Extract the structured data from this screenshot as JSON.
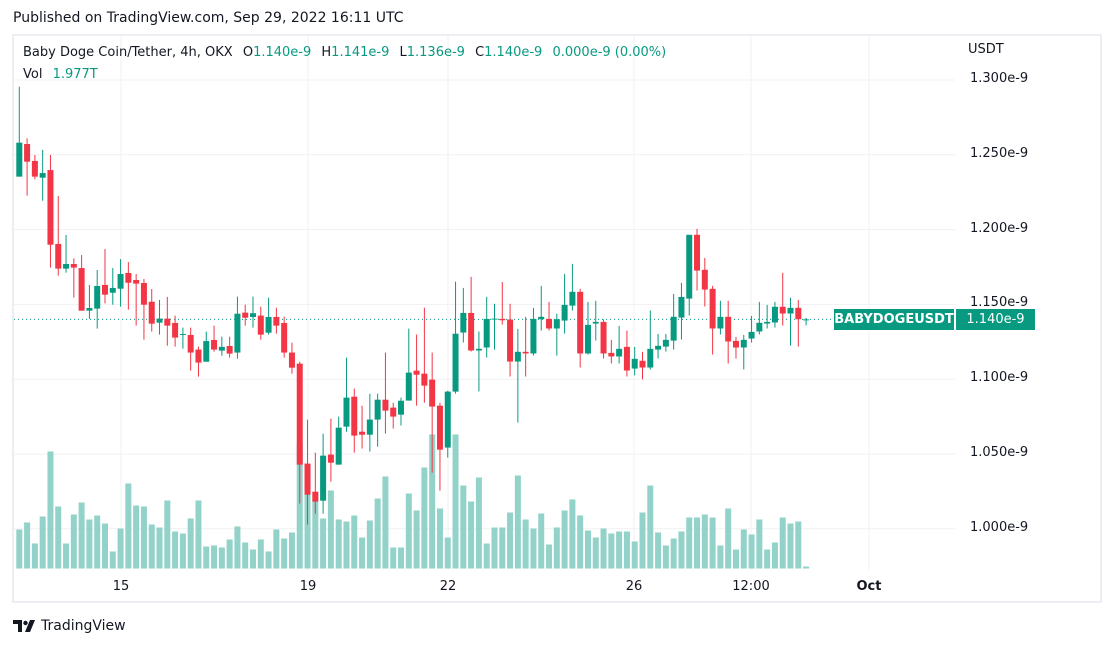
{
  "header": {
    "published": "Published on TradingView.com, Sep 29, 2022 16:11 UTC"
  },
  "legend": {
    "symbol": "Baby Doge Coin/Tether, 4h, OKX",
    "o_label": "O",
    "o": "1.140e-9",
    "h_label": "H",
    "h": "1.141e-9",
    "l_label": "L",
    "l": "1.136e-9",
    "c_label": "C",
    "c": "1.140e-9",
    "change": "0.000e-9 (0.00%)",
    "vol_label": "Vol",
    "vol": "1.977T"
  },
  "price_axis": {
    "currency": "USDT",
    "ticks": [
      "1.300e-9",
      "1.250e-9",
      "1.200e-9",
      "1.150e-9",
      "1.100e-9",
      "1.050e-9",
      "1.000e-9"
    ]
  },
  "time_axis": {
    "ticks": [
      "15",
      "19",
      "22",
      "26",
      "12:00",
      "Oct"
    ]
  },
  "last_price": {
    "symbol": "BABYDOGEUSDT",
    "value": "1.140e-9"
  },
  "brand": {
    "name": "TradingView"
  },
  "colors": {
    "up": "#089981",
    "down": "#f23645",
    "volume": "#92d2c9",
    "grid": "#f0f1f4"
  },
  "chart_data": {
    "type": "candlestick",
    "title": "Baby Doge Coin/Tether, 4h, OKX",
    "ylabel": "USDT (×1e-9)",
    "ylim": [
      0.96,
      1.32
    ],
    "tick_values": [
      1.3,
      1.25,
      1.2,
      1.15,
      1.1,
      1.05,
      1.0
    ],
    "last_price": 1.14,
    "volume_unit": "T",
    "fields": [
      "open",
      "high",
      "low",
      "close",
      "volume"
    ],
    "ohlcv": [
      [
        1.2354,
        1.2955,
        1.2354,
        1.2581,
        39
      ],
      [
        1.2572,
        1.261,
        1.2227,
        1.2454,
        46
      ],
      [
        1.2459,
        1.2499,
        1.2336,
        1.2354,
        25
      ],
      [
        1.2347,
        1.2532,
        1.2193,
        1.2378,
        52
      ],
      [
        1.2398,
        1.2499,
        1.1746,
        1.1899,
        117
      ],
      [
        1.1904,
        1.2225,
        1.1692,
        1.1739,
        62
      ],
      [
        1.1739,
        1.1964,
        1.1712,
        1.177,
        25
      ],
      [
        1.177,
        1.1808,
        1.1545,
        1.1746,
        54
      ],
      [
        1.1743,
        1.183,
        1.1458,
        1.1458,
        66
      ],
      [
        1.1458,
        1.163,
        1.1403,
        1.1476,
        49
      ],
      [
        1.1472,
        1.173,
        1.1338,
        1.1623,
        53
      ],
      [
        1.163,
        1.187,
        1.1507,
        1.1565,
        45
      ],
      [
        1.1578,
        1.1743,
        1.1498,
        1.161,
        17
      ],
      [
        1.1605,
        1.1803,
        1.1485,
        1.1703,
        40
      ],
      [
        1.171,
        1.1783,
        1.1465,
        1.1645,
        85
      ],
      [
        1.1663,
        1.1703,
        1.1358,
        1.1639,
        63
      ],
      [
        1.1643,
        1.167,
        1.1264,
        1.1498,
        62
      ],
      [
        1.1518,
        1.1603,
        1.1318,
        1.1371,
        44
      ],
      [
        1.1378,
        1.153,
        1.1298,
        1.1405,
        41
      ],
      [
        1.1405,
        1.155,
        1.1224,
        1.1358,
        68
      ],
      [
        1.1376,
        1.1425,
        1.1218,
        1.1278,
        37
      ],
      [
        1.1298,
        1.1345,
        1.1204,
        1.1302,
        35
      ],
      [
        1.1296,
        1.1345,
        1.1057,
        1.1178,
        50
      ],
      [
        1.1198,
        1.1218,
        1.1017,
        1.1111,
        68
      ],
      [
        1.1117,
        1.1318,
        1.1117,
        1.1255,
        22
      ],
      [
        1.1262,
        1.1358,
        1.1184,
        1.1198,
        23
      ],
      [
        1.1191,
        1.1284,
        1.1157,
        1.1216,
        21
      ],
      [
        1.1222,
        1.1284,
        1.1144,
        1.1171,
        29
      ],
      [
        1.1178,
        1.1552,
        1.1137,
        1.1438,
        42
      ],
      [
        1.1445,
        1.1498,
        1.1358,
        1.1411,
        26
      ],
      [
        1.1416,
        1.1552,
        1.1345,
        1.1441,
        19
      ],
      [
        1.1425,
        1.1485,
        1.1264,
        1.1298,
        29
      ],
      [
        1.1311,
        1.1545,
        1.1298,
        1.1416,
        17
      ],
      [
        1.1416,
        1.1478,
        1.1304,
        1.1358,
        39
      ],
      [
        1.1376,
        1.1418,
        1.1144,
        1.1178,
        30
      ],
      [
        1.1178,
        1.1244,
        1.1037,
        1.1077,
        36
      ],
      [
        1.1104,
        1.1117,
        1.0168,
        1.0429,
        125
      ],
      [
        1.0436,
        1.073,
        1.0028,
        1.0228,
        75
      ],
      [
        1.0248,
        1.0509,
        1.0101,
        1.0182,
        68
      ],
      [
        1.0188,
        1.0636,
        1.0101,
        1.0489,
        50
      ],
      [
        1.0496,
        1.0736,
        1.0315,
        1.0442,
        78
      ],
      [
        1.0429,
        1.075,
        1.0429,
        1.0676,
        49
      ],
      [
        1.0683,
        1.1144,
        1.0649,
        1.0877,
        47
      ],
      [
        1.0883,
        1.0937,
        1.0509,
        1.0623,
        53
      ],
      [
        1.0649,
        1.0823,
        1.0536,
        1.0629,
        31
      ],
      [
        1.0629,
        1.0903,
        1.0516,
        1.073,
        48
      ],
      [
        1.073,
        1.0903,
        1.0549,
        1.0863,
        70
      ],
      [
        1.0863,
        1.1178,
        1.0636,
        1.079,
        92
      ],
      [
        1.081,
        1.0843,
        1.067,
        1.075,
        21
      ],
      [
        1.0763,
        1.0877,
        1.069,
        1.0856,
        21
      ],
      [
        1.0857,
        1.1338,
        1.0857,
        1.1044,
        75
      ],
      [
        1.1057,
        1.1298,
        1.0823,
        1.103,
        58
      ],
      [
        1.1037,
        1.1478,
        1.0843,
        1.0957,
        101
      ],
      [
        1.0997,
        1.1178,
        1.0375,
        1.0817,
        134
      ],
      [
        1.0823,
        1.0843,
        1.0255,
        1.0529,
        60
      ],
      [
        1.0543,
        1.0923,
        1.0476,
        1.0917,
        31
      ],
      [
        1.0917,
        1.1652,
        1.0903,
        1.1304,
        134
      ],
      [
        1.1312,
        1.161,
        1.1245,
        1.1443,
        83
      ],
      [
        1.1443,
        1.1684,
        1.1185,
        1.1192,
        67
      ],
      [
        1.1192,
        1.1319,
        1.0918,
        1.1203,
        91
      ],
      [
        1.1212,
        1.155,
        1.1145,
        1.1403,
        25
      ],
      [
        1.1401,
        1.1504,
        1.1198,
        1.1405,
        41
      ],
      [
        1.1403,
        1.165,
        1.1365,
        1.1394,
        41
      ],
      [
        1.1399,
        1.1504,
        1.1018,
        1.1118,
        56
      ],
      [
        1.1118,
        1.1336,
        1.071,
        1.1183,
        93
      ],
      [
        1.1183,
        1.1417,
        1.1018,
        1.1172,
        49
      ],
      [
        1.1172,
        1.1477,
        1.1158,
        1.1403,
        40
      ],
      [
        1.1401,
        1.1624,
        1.1325,
        1.1417,
        55
      ],
      [
        1.1403,
        1.1517,
        1.1325,
        1.1339,
        24
      ],
      [
        1.1339,
        1.1437,
        1.1158,
        1.1401,
        41
      ],
      [
        1.1392,
        1.1704,
        1.1305,
        1.1497,
        58
      ],
      [
        1.1492,
        1.1771,
        1.1459,
        1.1584,
        69
      ],
      [
        1.1584,
        1.1604,
        1.1078,
        1.1172,
        53
      ],
      [
        1.1172,
        1.1517,
        1.1165,
        1.1363,
        38
      ],
      [
        1.1372,
        1.1524,
        1.1259,
        1.1383,
        31
      ],
      [
        1.1383,
        1.14,
        1.1138,
        1.1172,
        40
      ],
      [
        1.1176,
        1.1263,
        1.1105,
        1.1152,
        35
      ],
      [
        1.1152,
        1.1356,
        1.1105,
        1.1203,
        37
      ],
      [
        1.1216,
        1.1325,
        1.1018,
        1.1058,
        37
      ],
      [
        1.1071,
        1.1216,
        1.1025,
        1.1136,
        27
      ],
      [
        1.1123,
        1.1183,
        1.0998,
        1.1078,
        56
      ],
      [
        1.1078,
        1.1459,
        1.1065,
        1.1203,
        83
      ],
      [
        1.1198,
        1.1303,
        1.1138,
        1.1223,
        36
      ],
      [
        1.1218,
        1.1303,
        1.1185,
        1.1263,
        23
      ],
      [
        1.1258,
        1.157,
        1.1198,
        1.1417,
        30
      ],
      [
        1.1412,
        1.1644,
        1.1265,
        1.155,
        37
      ],
      [
        1.1539,
        1.1965,
        1.1426,
        1.1965,
        51
      ],
      [
        1.1965,
        1.2005,
        1.1593,
        1.1726,
        51
      ],
      [
        1.1731,
        1.1811,
        1.1486,
        1.1599,
        54
      ],
      [
        1.1604,
        1.1624,
        1.1165,
        1.1339,
        51
      ],
      [
        1.1339,
        1.1524,
        1.1299,
        1.1417,
        23
      ],
      [
        1.1417,
        1.1524,
        1.1105,
        1.1252,
        60
      ],
      [
        1.1256,
        1.1283,
        1.1138,
        1.1212,
        19
      ],
      [
        1.1212,
        1.1296,
        1.1065,
        1.1263,
        39
      ],
      [
        1.1272,
        1.1423,
        1.1245,
        1.1316,
        34
      ],
      [
        1.1319,
        1.1517,
        1.1299,
        1.1377,
        49
      ],
      [
        1.1372,
        1.1497,
        1.1339,
        1.1383,
        19
      ],
      [
        1.1379,
        1.1517,
        1.1345,
        1.1484,
        26
      ],
      [
        1.1484,
        1.1711,
        1.1359,
        1.1439,
        51
      ],
      [
        1.1439,
        1.1544,
        1.1225,
        1.1477,
        45
      ],
      [
        1.1477,
        1.153,
        1.1218,
        1.1401,
        47
      ],
      [
        1.14,
        1.141,
        1.136,
        1.14,
        1.977
      ]
    ]
  }
}
